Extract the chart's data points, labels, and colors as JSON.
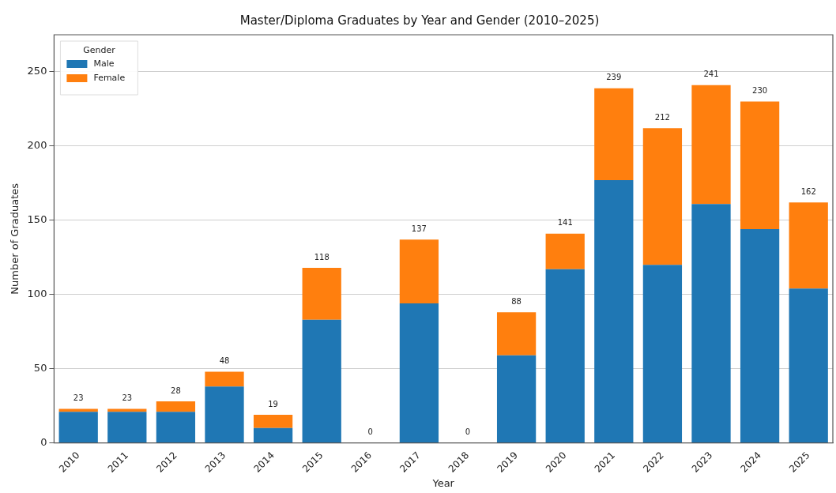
{
  "chart_data": {
    "type": "bar",
    "title": "Master/Diploma Graduates by Year and Gender (2010–2025)",
    "xlabel": "Year",
    "ylabel": "Number of Graduates",
    "legend_title": "Gender",
    "legend": "top left",
    "grid": "y",
    "stacked": true,
    "categories": [
      "2010",
      "2011",
      "2012",
      "2013",
      "2014",
      "2015",
      "2016",
      "2017",
      "2018",
      "2019",
      "2020",
      "2021",
      "2022",
      "2023",
      "2024",
      "2025"
    ],
    "series": [
      {
        "name": "Male",
        "color": "#1f77b4",
        "values": [
          21,
          21,
          21,
          38,
          10,
          83,
          0,
          94,
          0,
          59,
          117,
          177,
          120,
          161,
          144,
          104
        ]
      },
      {
        "name": "Female",
        "color": "#ff7f0e",
        "values": [
          2,
          2,
          7,
          10,
          9,
          35,
          0,
          43,
          0,
          29,
          24,
          62,
          92,
          80,
          86,
          58
        ]
      }
    ],
    "totals": [
      "23",
      "23",
      "28",
      "48",
      "19",
      "118",
      "0",
      "137",
      "0",
      "88",
      "141",
      "239",
      "212",
      "241",
      "230",
      "162"
    ],
    "ylim": [
      0,
      275
    ],
    "yticks": [
      0,
      50,
      100,
      150,
      200,
      250
    ]
  }
}
